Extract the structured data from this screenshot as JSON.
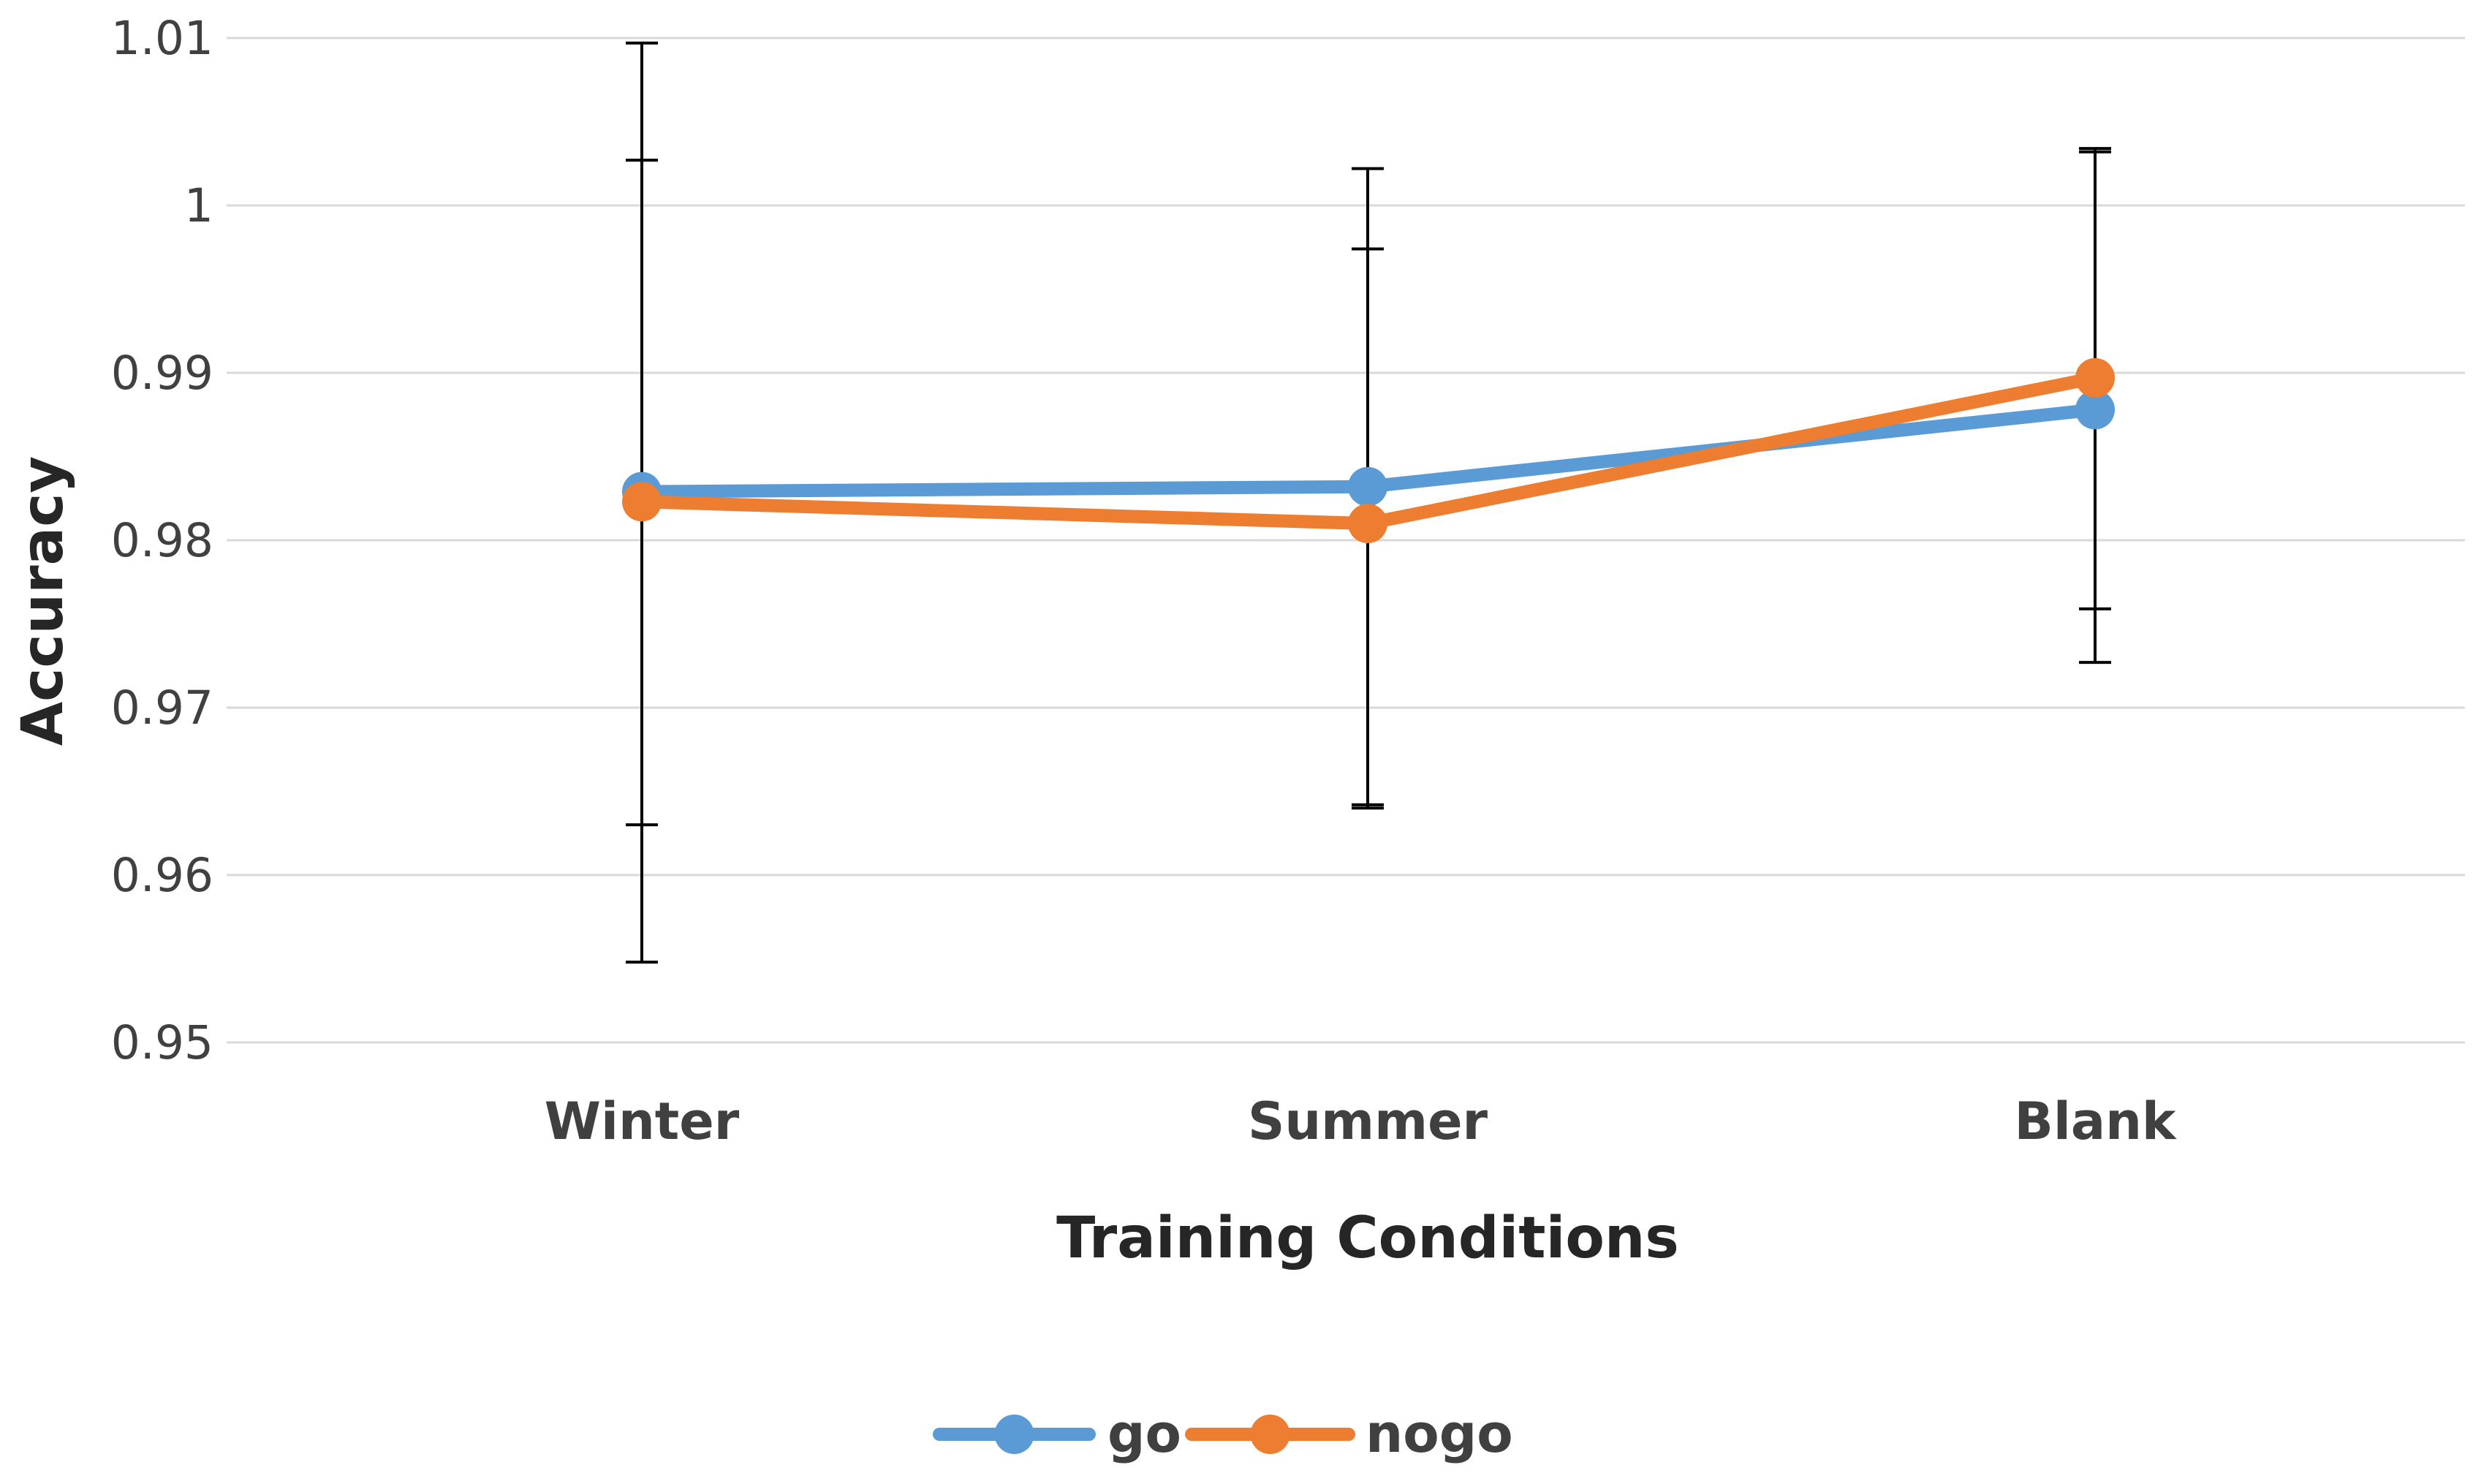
{
  "chart_data": {
    "type": "line",
    "title": "",
    "xlabel": "Training Conditions",
    "ylabel": "Accuracy",
    "categories": [
      "Winter",
      "Summer",
      "Blank"
    ],
    "ylim": [
      0.95,
      1.01
    ],
    "yticks": [
      0.95,
      0.96,
      0.97,
      0.98,
      0.99,
      1,
      1.01
    ],
    "ytick_labels": [
      "0.95",
      "0.96",
      "0.97",
      "0.98",
      "0.99",
      "1",
      "1.01"
    ],
    "grid": true,
    "legend_position": "bottom",
    "series": [
      {
        "name": "go",
        "color": "#5b9bd5",
        "values": [
          0.9829,
          0.9832,
          0.9878
        ],
        "error_plus": [
          0.0198,
          0.019,
          0.0154
        ],
        "error_minus": [
          0.0199,
          0.019,
          0.0119
        ]
      },
      {
        "name": "nogo",
        "color": "#ed7d31",
        "values": [
          0.9823,
          0.981,
          0.9897
        ],
        "error_plus": [
          0.0274,
          0.0164,
          0.0137
        ],
        "error_minus": [
          0.0275,
          0.017,
          0.017
        ]
      }
    ]
  }
}
